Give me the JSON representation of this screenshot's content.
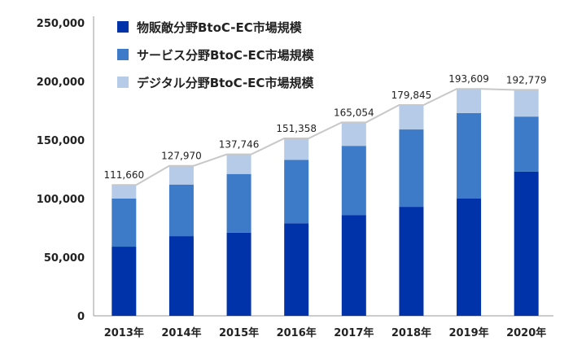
{
  "chart_data": {
    "type": "bar",
    "stacked": true,
    "categories": [
      "2013年",
      "2014年",
      "2015年",
      "2016年",
      "2017年",
      "2018年",
      "2019年",
      "2020年"
    ],
    "series": [
      {
        "name": "物販敵分野BtoC-EC市場規模",
        "color": "#0033aa",
        "values": [
          59000,
          68000,
          71000,
          79000,
          86000,
          93000,
          100000,
          123000
        ]
      },
      {
        "name": "サービス分野BtoC-EC市場規模",
        "color": "#3d7ac8",
        "values": [
          41000,
          44000,
          50000,
          54000,
          59000,
          66000,
          73000,
          47000
        ]
      },
      {
        "name": "デジタル分野BtoC-EC市場規模",
        "color": "#b5cbe8",
        "values": [
          11660,
          15970,
          16746,
          18358,
          20054,
          20845,
          20609,
          22779
        ]
      }
    ],
    "totals": [
      111660,
      127970,
      137746,
      151358,
      165054,
      179845,
      193609,
      192779
    ],
    "total_labels": [
      "111,660",
      "127,970",
      "137,746",
      "151,358",
      "165,054",
      "179,845",
      "193,609",
      "192,779"
    ],
    "total_line_color": "#c8c8c8",
    "y_ticks": [
      "0",
      "50,000",
      "100,000",
      "150,000",
      "200,000",
      "250,000"
    ],
    "ylim": [
      0,
      250000
    ],
    "grid": false,
    "legend_position": "top-left",
    "title": "",
    "xlabel": "",
    "ylabel": ""
  }
}
